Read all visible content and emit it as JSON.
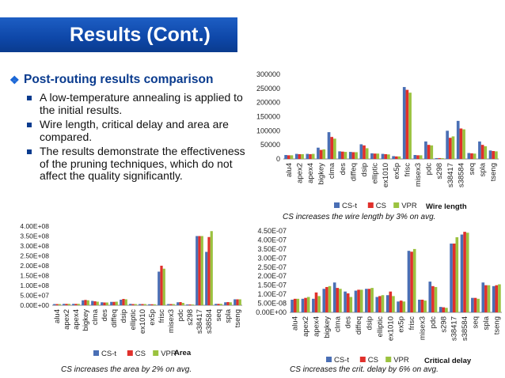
{
  "slide": {
    "title": "Results (Cont.)",
    "bullet": "Post-routing results comparison",
    "subbullets": [
      "A low-temperature annealing is applied to the initial results.",
      "Wire length, critical delay and area are compared.",
      "The results demonstrate the effectiveness of the pruning techniques, which do not affect the quality significantly."
    ]
  },
  "captions": {
    "wire": "CS increases the wire length by 3% on avg.",
    "area": "CS increases the area by 2% on avg.",
    "delay": "CS increases the crit. delay by 6% on avg."
  },
  "colors": {
    "cst": "#4a6fb5",
    "cs": "#e0302b",
    "vpr": "#9bc23f"
  },
  "chart_data": [
    {
      "id": "wire",
      "type": "bar",
      "title": "Wire length",
      "categories": [
        "alu4",
        "apex2",
        "apex4",
        "bigkey",
        "clma",
        "des",
        "diffeq",
        "dsip",
        "elliptic",
        "ex1010",
        "ex5p",
        "frisc",
        "misex3",
        "pdc",
        "s298",
        "s38417",
        "s38584",
        "seq",
        "spla",
        "tseng"
      ],
      "ylim": [
        0,
        300000
      ],
      "yticks": [
        "0",
        "50000",
        "100000",
        "150000",
        "200000",
        "250000",
        "300000"
      ],
      "legend": [
        "CS-t",
        "CS",
        "VPR"
      ],
      "series": [
        {
          "name": "CS-t",
          "values": [
            14000,
            18000,
            18000,
            40000,
            95000,
            27000,
            25000,
            52000,
            20000,
            18000,
            10000,
            255000,
            14000,
            62000,
            3000,
            100000,
            135000,
            21000,
            62000,
            30000
          ]
        },
        {
          "name": "CS",
          "values": [
            13000,
            17000,
            17000,
            32000,
            78000,
            26000,
            24000,
            48000,
            19000,
            17000,
            9000,
            245000,
            13000,
            50000,
            3000,
            75000,
            108000,
            20000,
            50000,
            28000
          ]
        },
        {
          "name": "VPR",
          "values": [
            13000,
            17000,
            18000,
            34000,
            72000,
            25000,
            24000,
            38000,
            19000,
            16000,
            9000,
            235000,
            13000,
            48000,
            3000,
            80000,
            105000,
            19000,
            45000,
            27000
          ]
        }
      ]
    },
    {
      "id": "area",
      "type": "bar",
      "title": "Area",
      "categories": [
        "alu4",
        "apex2",
        "apex4",
        "bigkey",
        "clma",
        "des",
        "diffeq",
        "dsip",
        "elliptic",
        "ex1010",
        "ex5p",
        "frisc",
        "misex3",
        "pdc",
        "s298",
        "s38417",
        "s38584",
        "seq",
        "spla",
        "tseng"
      ],
      "ylim": [
        0,
        400000000
      ],
      "yticks": [
        "0.00E+00",
        "5.00E+07",
        "1.00E+08",
        "1.50E+08",
        "2.00E+08",
        "2.50E+08",
        "3.00E+08",
        "3.50E+08",
        "4.00E+08"
      ],
      "legend": [
        "CS-t",
        "CS",
        "VPR"
      ],
      "series": [
        {
          "name": "CS-t",
          "values": [
            6000000,
            7000000,
            7000000,
            25000000,
            22000000,
            15000000,
            17000000,
            28000000,
            7000000,
            6000000,
            5000000,
            170000000,
            6000000,
            15000000,
            4000000,
            350000000,
            270000000,
            7000000,
            15000000,
            30000000
          ]
        },
        {
          "name": "CS",
          "values": [
            6000000,
            7000000,
            7000000,
            27000000,
            20000000,
            14000000,
            17000000,
            32000000,
            6000000,
            6000000,
            5000000,
            200000000,
            6000000,
            16000000,
            4000000,
            350000000,
            345000000,
            7000000,
            16000000,
            30000000
          ]
        },
        {
          "name": "VPR",
          "values": [
            6000000,
            7000000,
            7000000,
            25000000,
            18000000,
            14000000,
            18000000,
            30000000,
            6000000,
            6000000,
            5000000,
            185000000,
            6000000,
            12000000,
            4000000,
            350000000,
            375000000,
            7000000,
            15000000,
            30000000
          ]
        }
      ]
    },
    {
      "id": "delay",
      "type": "bar",
      "title": "Critical delay",
      "categories": [
        "alu4",
        "apex2",
        "apex4",
        "bigkey",
        "clma",
        "des",
        "diffeq",
        "dsip",
        "elliptic",
        "ex1010",
        "ex5p",
        "frisc",
        "misex3",
        "pdc",
        "s298",
        "s38417",
        "s38584",
        "seq",
        "spla",
        "tseng"
      ],
      "ylim": [
        0,
        4.5e-07
      ],
      "yticks": [
        "0.00E+00",
        "5.00E-08",
        "1.00E-07",
        "1.50E-07",
        "2.00E-07",
        "2.50E-07",
        "3.00E-07",
        "3.50E-07",
        "4.00E-07",
        "4.50E-07"
      ],
      "legend": [
        "CS-t",
        "CS",
        "VPR"
      ],
      "series": [
        {
          "name": "CS-t",
          "values": [
            7e-08,
            7.5e-08,
            7.5e-08,
            1.3e-07,
            1.65e-07,
            1.15e-07,
            1.2e-07,
            1.3e-07,
            8.5e-08,
            9.5e-08,
            6e-08,
            3.4e-07,
            7e-08,
            1.7e-07,
            3e-08,
            3.8e-07,
            4.3e-07,
            8e-08,
            1.65e-07,
            1.45e-07
          ]
        },
        {
          "name": "CS",
          "values": [
            7.5e-08,
            8e-08,
            1.1e-07,
            1.4e-07,
            1.35e-07,
            1.05e-07,
            1.25e-07,
            1.3e-07,
            9e-08,
            1.15e-07,
            6.5e-08,
            3.35e-07,
            7e-08,
            1.45e-07,
            2.8e-08,
            3.8e-07,
            4.45e-07,
            8e-08,
            1.5e-07,
            1.5e-07
          ]
        },
        {
          "name": "VPR",
          "values": [
            7.5e-08,
            8.5e-08,
            9e-08,
            1.45e-07,
            1.3e-07,
            8.5e-08,
            1.25e-07,
            1.35e-07,
            9.5e-08,
            9e-08,
            6e-08,
            3.5e-07,
            6.5e-08,
            1.4e-07,
            2.5e-08,
            4.15e-07,
            4.4e-07,
            7.5e-08,
            1.5e-07,
            1.55e-07
          ]
        }
      ]
    }
  ]
}
